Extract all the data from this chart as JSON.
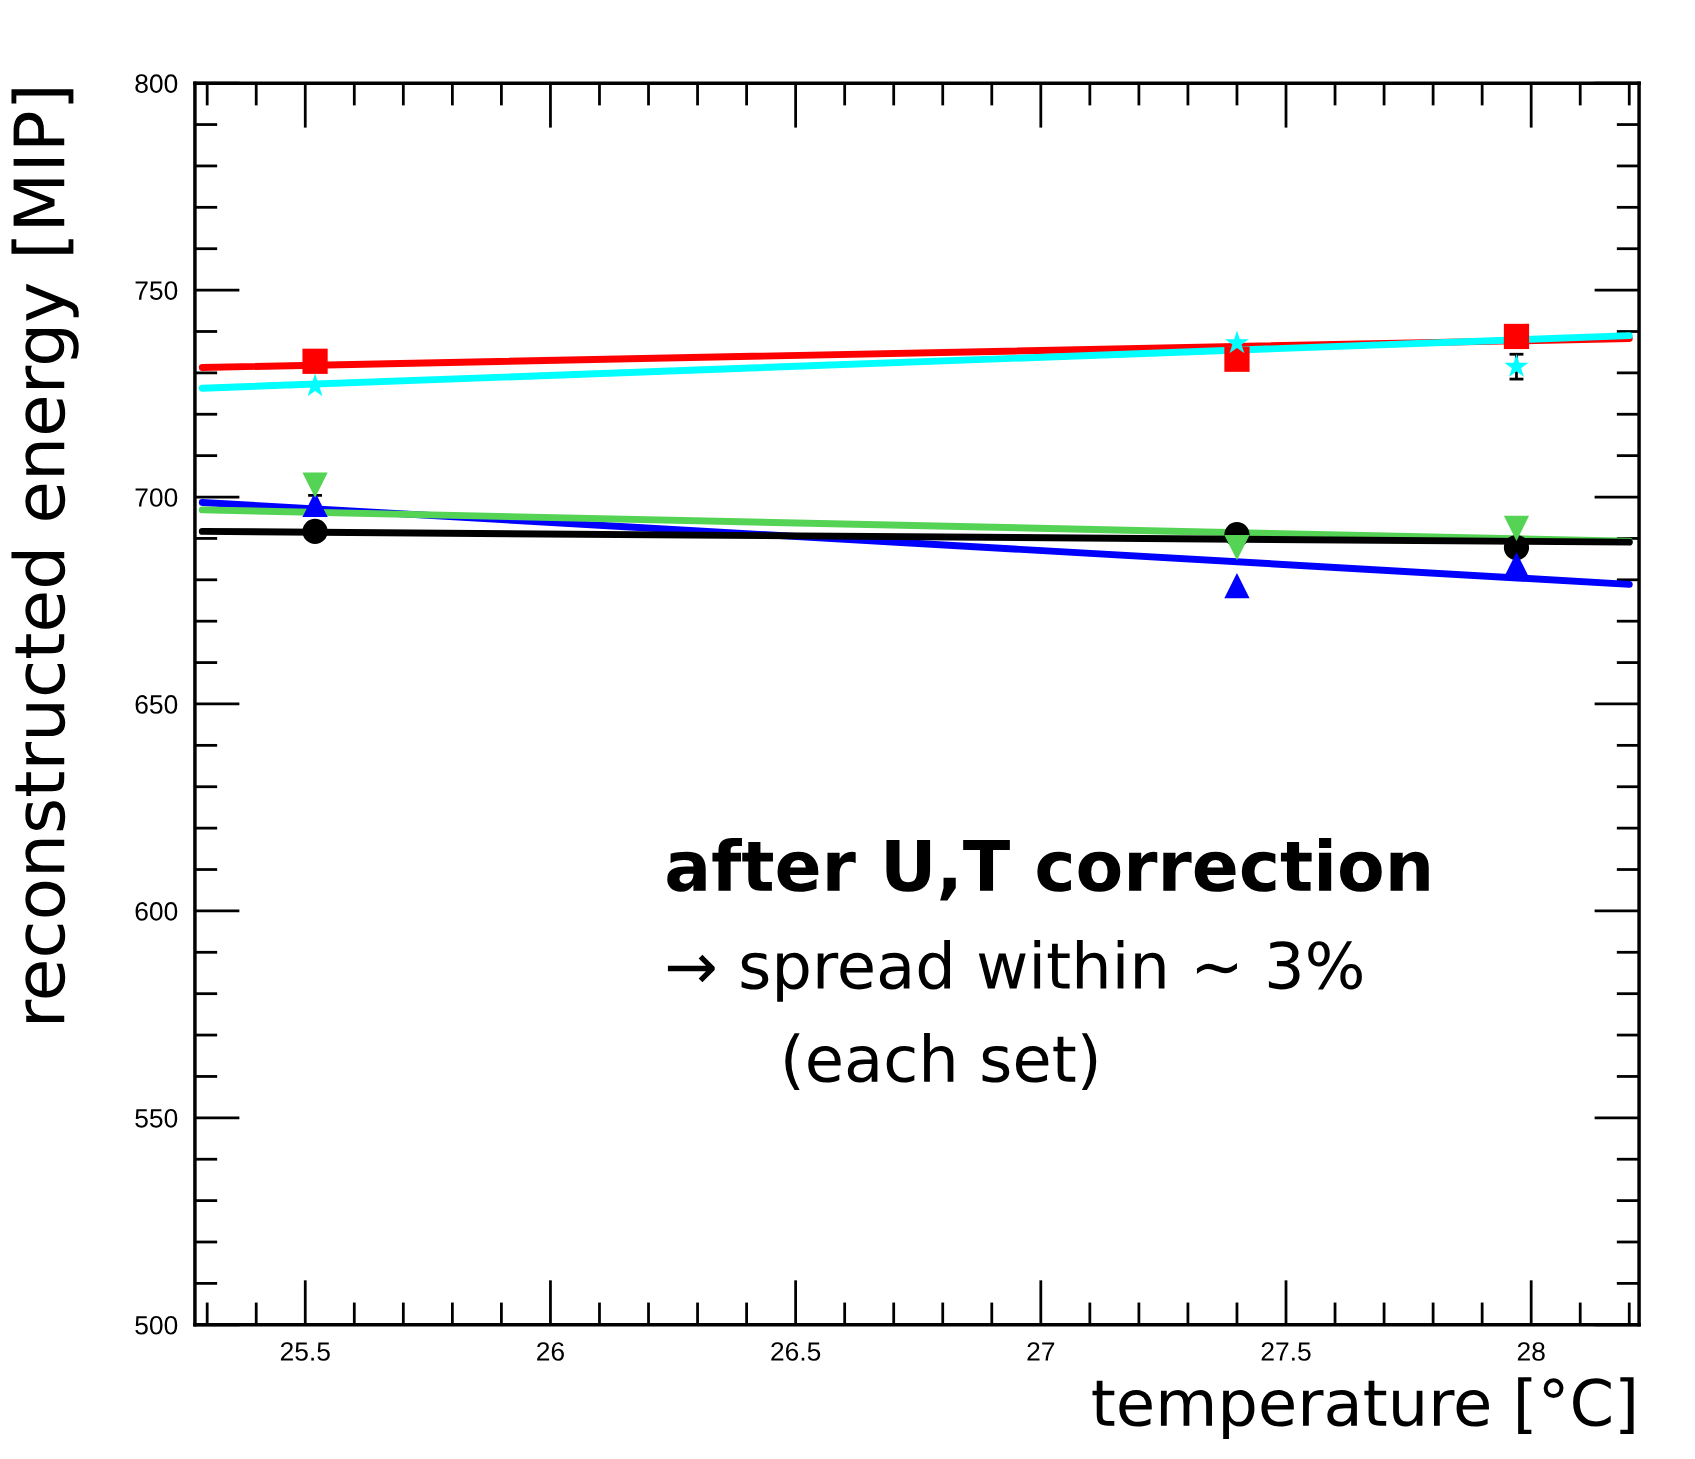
{
  "chart_data": {
    "type": "scatter",
    "xlabel": "temperature [°C]",
    "ylabel": "reconstructed energy [MIP]",
    "annotations": [
      "after U,T correction",
      "→ spread within ~ 3%",
      "(each set)"
    ],
    "xlim": [
      25.275,
      28.22
    ],
    "ylim": [
      500,
      800
    ],
    "xticks": [
      25.5,
      26,
      26.5,
      27,
      27.5,
      28
    ],
    "yticks": [
      500,
      550,
      600,
      650,
      700,
      750,
      800
    ],
    "grid": false,
    "legend": false,
    "series": [
      {
        "type": "line",
        "color": "#ff0000",
        "marker": "none",
        "x": [
          25.29,
          28.2
        ],
        "values": [
          731.3,
          738.3
        ]
      },
      {
        "type": "line",
        "color": "#00ffff",
        "marker": "none",
        "x": [
          25.29,
          28.2
        ],
        "values": [
          726.3,
          739.0
        ]
      },
      {
        "type": "line",
        "color": "#0000ff",
        "marker": "none",
        "x": [
          25.29,
          28.2
        ],
        "values": [
          698.7,
          678.9
        ]
      },
      {
        "type": "line",
        "color": "#55d355",
        "marker": "none",
        "x": [
          25.29,
          28.2
        ],
        "values": [
          696.9,
          689.3
        ]
      },
      {
        "type": "line",
        "color": "#000000",
        "marker": "none",
        "x": [
          25.29,
          28.2
        ],
        "values": [
          691.7,
          689.1
        ]
      },
      {
        "type": "scatter",
        "color": "#ff0000",
        "marker": "square",
        "x": [
          25.52,
          27.4,
          27.97
        ],
        "values": [
          732.8,
          733.3,
          738.8
        ]
      },
      {
        "type": "scatter",
        "color": "#00ffff",
        "marker": "star",
        "x": [
          25.52,
          27.4,
          27.97
        ],
        "values": [
          726.8,
          737.2,
          731.5
        ],
        "errors": [
          null,
          null,
          3
        ]
      },
      {
        "type": "scatter",
        "color": "#000000",
        "marker": "circle",
        "x": [
          25.52,
          27.4,
          27.97
        ],
        "values": [
          691.7,
          690.9,
          687.8
        ]
      },
      {
        "type": "scatter",
        "color": "#0000ff",
        "marker": "triangle",
        "x": [
          25.52,
          27.4,
          27.97
        ],
        "values": [
          698.2,
          678.6,
          683.6
        ]
      },
      {
        "type": "scatter",
        "color": "#55d355",
        "marker": "triangle_down",
        "x": [
          25.52,
          27.4,
          27.97
        ],
        "values": [
          702.9,
          687.8,
          692.4
        ],
        "errors": [
          2.5,
          null,
          null
        ]
      }
    ]
  }
}
